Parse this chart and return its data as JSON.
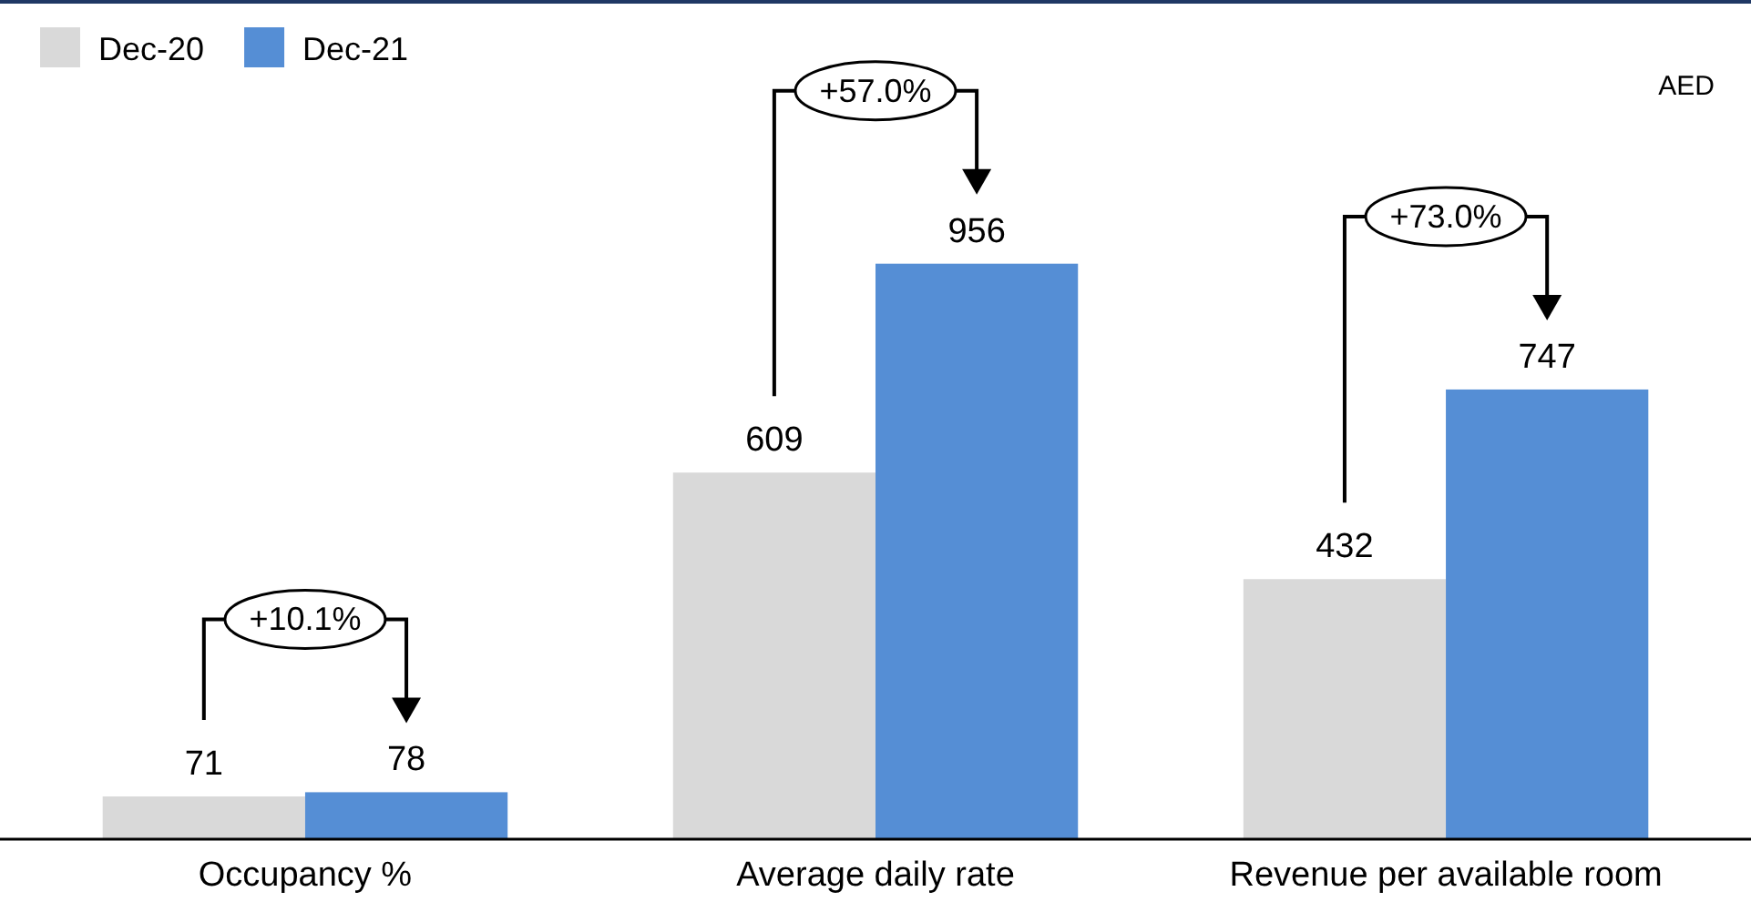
{
  "chart_data": {
    "type": "bar",
    "categories": [
      "Occupancy %",
      "Average daily rate",
      "Revenue per available room"
    ],
    "series": [
      {
        "name": "Dec-20",
        "color": "#d9d9d9",
        "values": [
          71,
          609,
          432
        ]
      },
      {
        "name": "Dec-21",
        "color": "#558ed5",
        "values": [
          78,
          956,
          747
        ]
      }
    ],
    "data_labels": true,
    "legend": "top left",
    "tick_labels": "x",
    "annotations": [
      "+10.1%",
      "+57.0%",
      "+73.0%",
      "AED"
    ]
  }
}
